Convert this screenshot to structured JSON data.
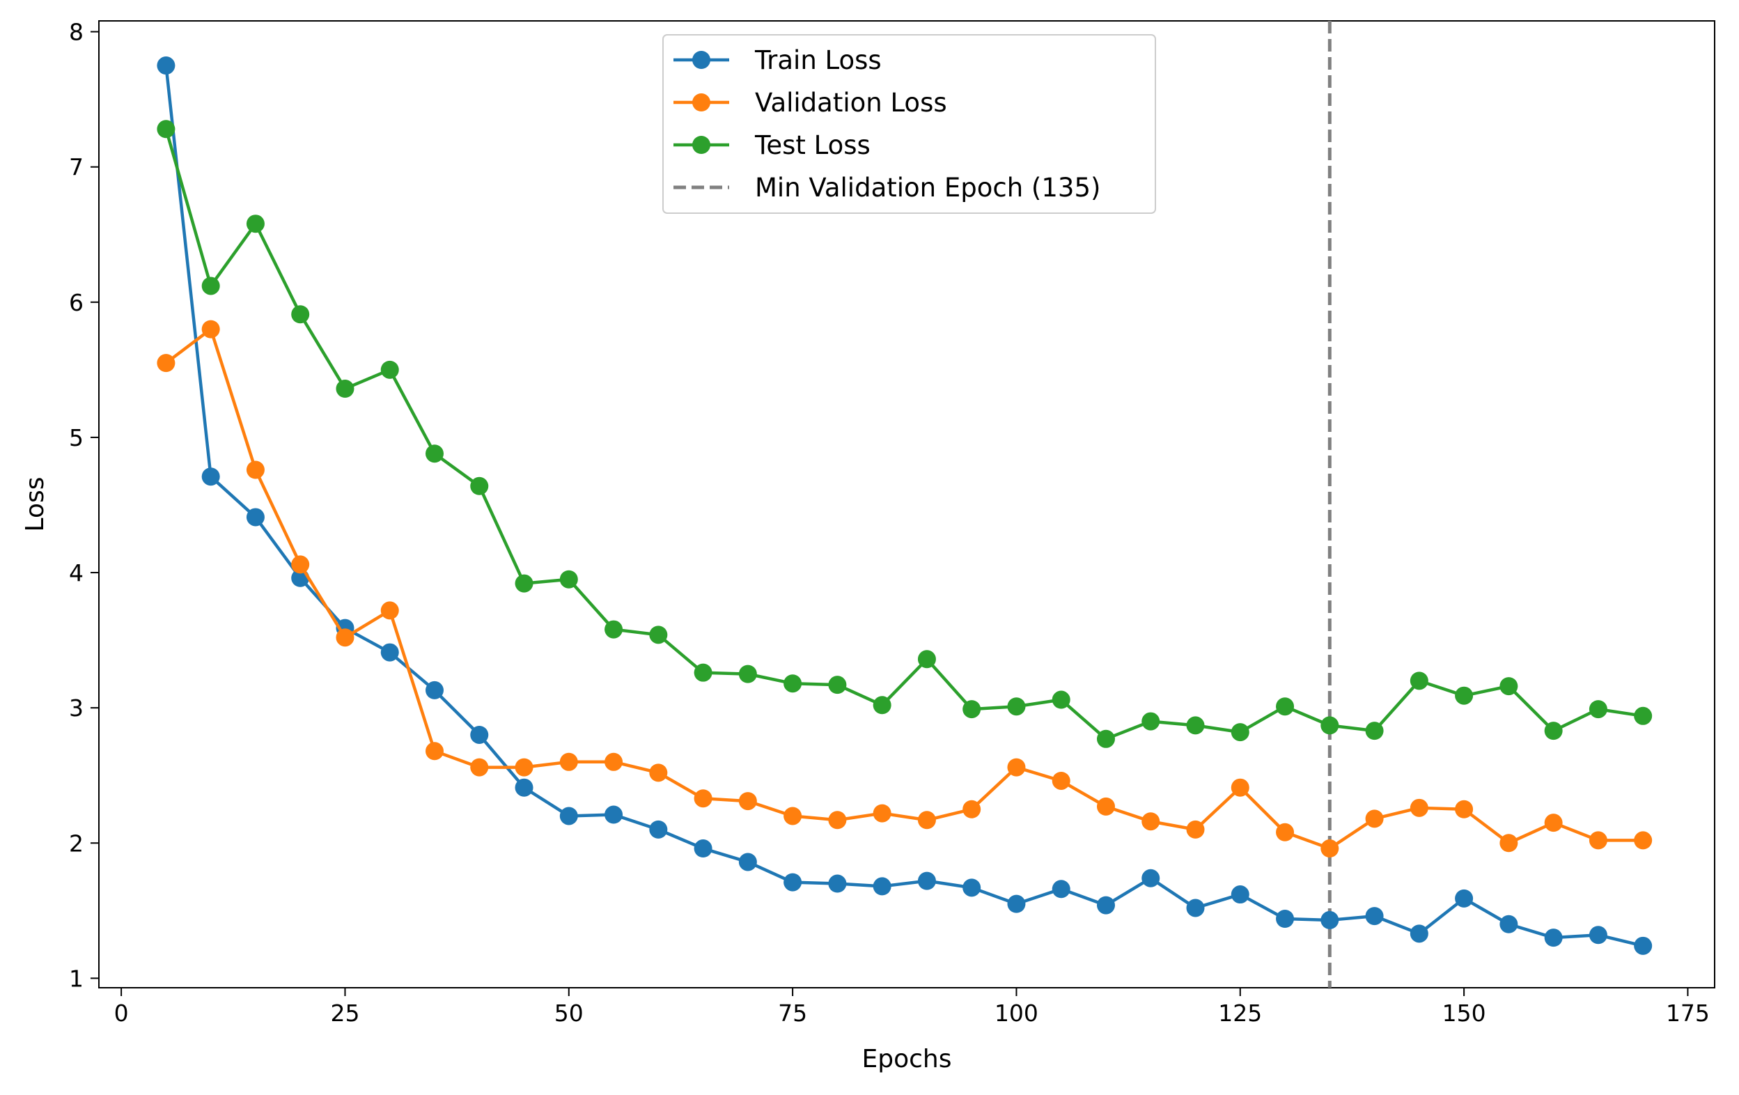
{
  "chart_data": {
    "type": "line",
    "title": "",
    "xlabel": "Epochs",
    "ylabel": "Loss",
    "xlim": [
      -2.5,
      178
    ],
    "ylim": [
      0.93,
      8.08
    ],
    "xticks": [
      0,
      25,
      50,
      75,
      100,
      125,
      150,
      175
    ],
    "yticks": [
      1,
      2,
      3,
      4,
      5,
      6,
      7,
      8
    ],
    "grid": false,
    "legend_position": "top-center",
    "x": [
      5,
      10,
      15,
      20,
      25,
      30,
      35,
      40,
      45,
      50,
      55,
      60,
      65,
      70,
      75,
      80,
      85,
      90,
      95,
      100,
      105,
      110,
      115,
      120,
      125,
      130,
      135,
      140,
      145,
      150,
      155,
      160,
      165,
      170
    ],
    "series": [
      {
        "name": "Train Loss",
        "color": "#1f77b4",
        "values": [
          7.75,
          4.71,
          4.41,
          3.96,
          3.59,
          3.41,
          3.13,
          2.8,
          2.41,
          2.2,
          2.21,
          2.1,
          1.96,
          1.86,
          1.71,
          1.7,
          1.68,
          1.72,
          1.67,
          1.55,
          1.66,
          1.54,
          1.74,
          1.52,
          1.62,
          1.44,
          1.43,
          1.46,
          1.33,
          1.59,
          1.4,
          1.3,
          1.32,
          1.24
        ]
      },
      {
        "name": "Validation Loss",
        "color": "#ff7f0e",
        "values": [
          5.55,
          5.8,
          4.76,
          4.06,
          3.52,
          3.72,
          2.68,
          2.56,
          2.56,
          2.6,
          2.6,
          2.52,
          2.33,
          2.31,
          2.2,
          2.17,
          2.22,
          2.17,
          2.25,
          2.56,
          2.46,
          2.27,
          2.16,
          2.1,
          2.41,
          2.08,
          1.96,
          2.18,
          2.26,
          2.25,
          2.0,
          2.15,
          2.02,
          2.02
        ]
      },
      {
        "name": "Test Loss",
        "color": "#2ca02c",
        "values": [
          7.28,
          6.12,
          6.58,
          5.91,
          5.36,
          5.5,
          4.88,
          4.64,
          3.92,
          3.95,
          3.58,
          3.54,
          3.26,
          3.25,
          3.18,
          3.17,
          3.02,
          3.36,
          2.99,
          3.01,
          3.06,
          2.77,
          2.9,
          2.87,
          2.82,
          3.01,
          2.87,
          2.83,
          3.2,
          3.09,
          3.16,
          2.83,
          2.99,
          2.94
        ]
      }
    ],
    "vline": {
      "name": "Min Validation Epoch (135)",
      "x": 135,
      "color": "#808080",
      "style": "dashed"
    }
  }
}
